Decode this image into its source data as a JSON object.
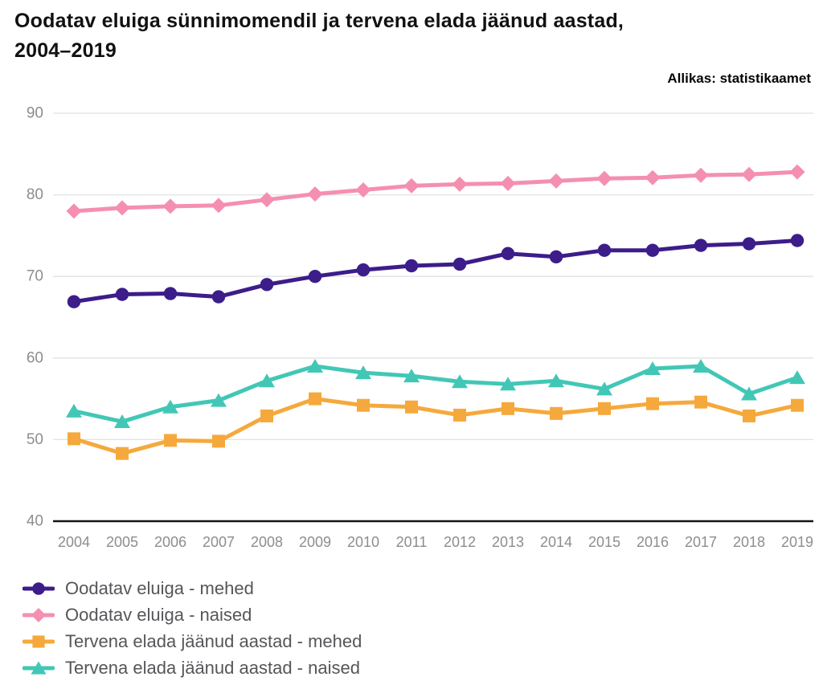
{
  "page": {
    "title": "Oodatav eluiga sünnimomendil ja tervena elada jäänud aastad,\n2004–2019",
    "source": "Allikas: statistikaamet"
  },
  "chart_data": {
    "type": "line",
    "title": "Oodatav eluiga sünnimomendil ja tervena elada jäänud aastad, 2004–2019",
    "source": "Allikas: statistikaamet",
    "x": [
      2004,
      2005,
      2006,
      2007,
      2008,
      2009,
      2010,
      2011,
      2012,
      2013,
      2014,
      2015,
      2016,
      2017,
      2018,
      2019
    ],
    "series": [
      {
        "name": "Oodatav eluiga - mehed",
        "color": "#3c1d8a",
        "marker": "circle",
        "values": [
          66.9,
          67.8,
          67.9,
          67.5,
          69.0,
          70.0,
          70.8,
          71.3,
          71.5,
          72.8,
          72.4,
          73.2,
          73.2,
          73.8,
          74.0,
          74.4
        ]
      },
      {
        "name": "Oodatav eluiga - naised",
        "color": "#f48fb0",
        "marker": "diamond",
        "values": [
          78.0,
          78.4,
          78.6,
          78.7,
          79.4,
          80.1,
          80.6,
          81.1,
          81.3,
          81.4,
          81.7,
          82.0,
          82.1,
          82.4,
          82.5,
          82.8
        ]
      },
      {
        "name": "Tervena elada jäänud aastad - mehed",
        "color": "#f5a93c",
        "marker": "square",
        "values": [
          50.1,
          48.3,
          49.9,
          49.8,
          52.9,
          55.0,
          54.2,
          54.0,
          53.0,
          53.8,
          53.2,
          53.8,
          54.4,
          54.6,
          52.9,
          54.2
        ]
      },
      {
        "name": "Tervena elada jäänud aastad - naised",
        "color": "#42c7b6",
        "marker": "triangle-up",
        "values": [
          53.5,
          52.2,
          54.0,
          54.8,
          57.2,
          59.0,
          58.2,
          57.8,
          57.1,
          56.8,
          57.2,
          56.2,
          58.7,
          59.0,
          55.6,
          57.6
        ]
      }
    ],
    "xlabel": "",
    "ylabel": "",
    "ylim": [
      40,
      90
    ],
    "yticks": [
      40,
      50,
      60,
      70,
      80,
      90
    ],
    "grid": true,
    "legend_position": "bottom-left",
    "colors": {
      "grid": "#e2e2e2",
      "axis": "#141414",
      "tick_label": "#8d8d90",
      "legend_text": "#56565a"
    }
  }
}
